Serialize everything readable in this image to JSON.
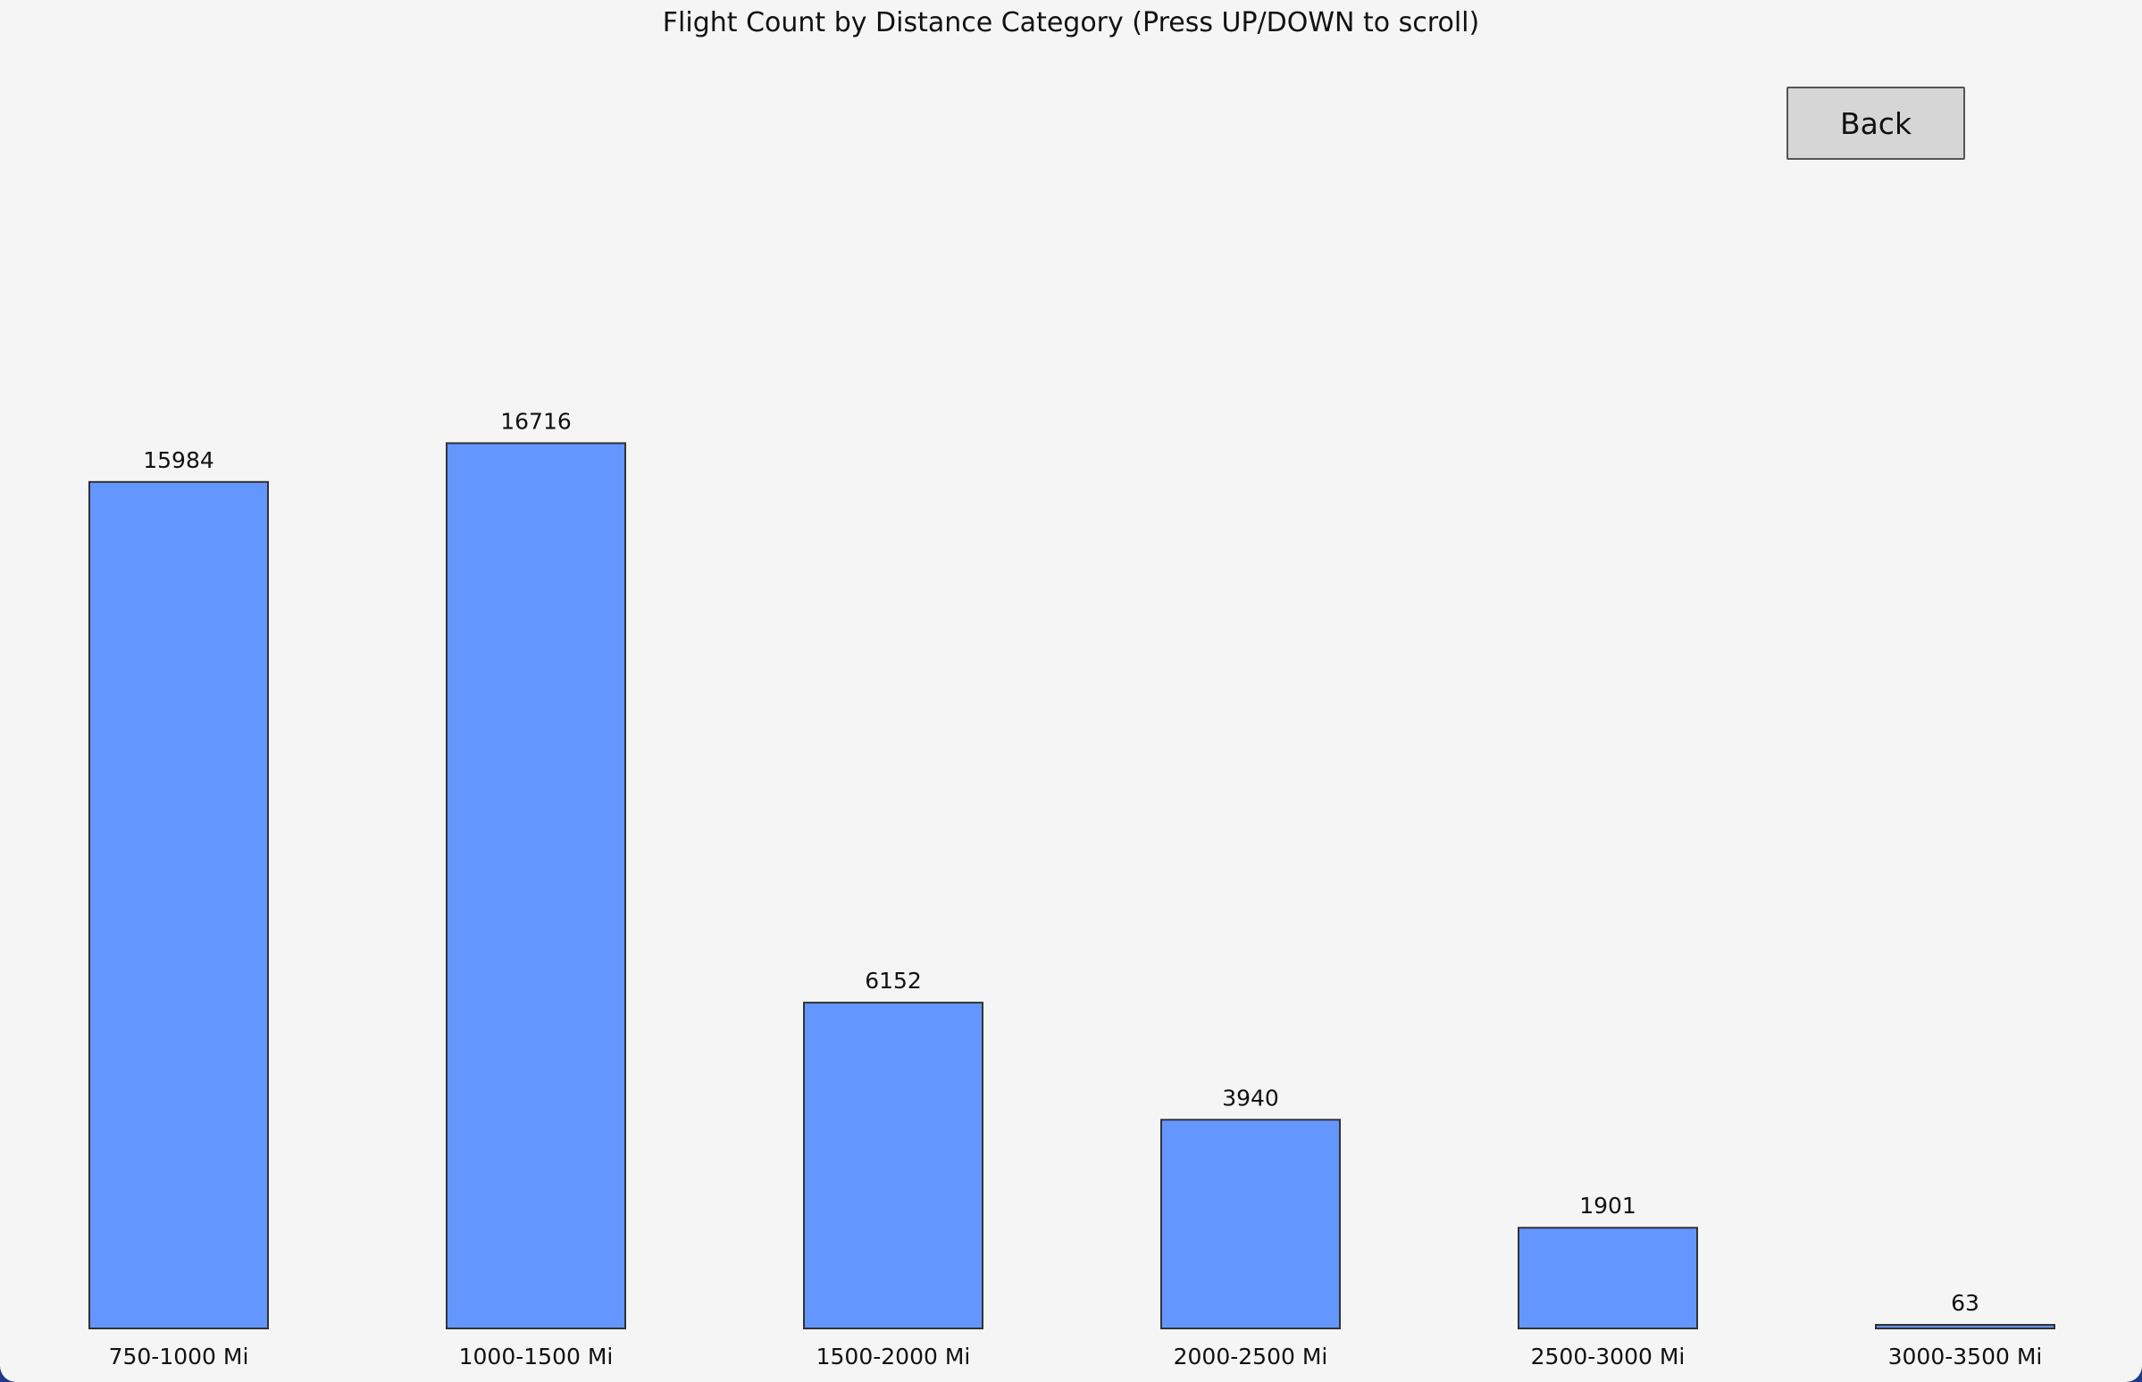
{
  "window": {
    "back_label": "Back"
  },
  "chart_data": {
    "type": "bar",
    "title": "Flight Count by Distance Category (Press UP/DOWN to scroll)",
    "xlabel": "",
    "ylabel": "",
    "categories": [
      "750-1000 Mi",
      "1000-1500 Mi",
      "1500-2000 Mi",
      "2000-2500 Mi",
      "2500-3000 Mi",
      "3000-3500 Mi"
    ],
    "values": [
      15984,
      16716,
      6152,
      3940,
      1901,
      63
    ],
    "bar_color": "#6496ff",
    "bar_edge_color": "#333333",
    "grid": false,
    "data_labels": true
  }
}
